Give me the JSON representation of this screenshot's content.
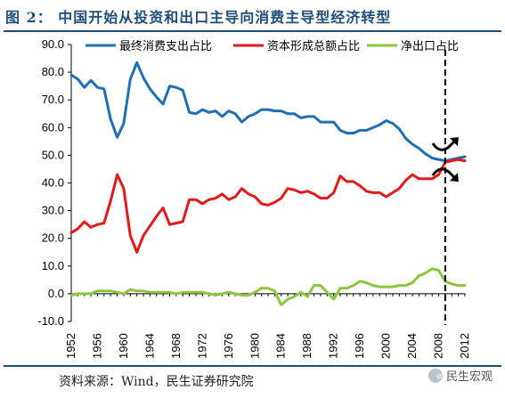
{
  "header": {
    "title": "图 2：  中国开始从投资和出口主导向消费主导型经济转型"
  },
  "footer": {
    "source": "资料来源：Wind，民生证券研究院",
    "watermark": "民生宏观"
  },
  "chart_data": {
    "type": "line",
    "title": "",
    "xlabel": "",
    "ylabel": "",
    "ylim": [
      -10,
      90
    ],
    "yticks": [
      "-10.0",
      "0.0",
      "10.0",
      "20.0",
      "30.0",
      "40.0",
      "50.0",
      "60.0",
      "70.0",
      "80.0",
      "90.0"
    ],
    "xticks": [
      "1952",
      "1956",
      "1960",
      "1964",
      "1968",
      "1972",
      "1976",
      "1980",
      "1984",
      "1988",
      "1992",
      "1996",
      "2000",
      "2004",
      "2008",
      "2012"
    ],
    "x": [
      1952,
      1953,
      1954,
      1955,
      1956,
      1957,
      1958,
      1959,
      1960,
      1961,
      1962,
      1963,
      1964,
      1965,
      1966,
      1967,
      1968,
      1969,
      1970,
      1971,
      1972,
      1973,
      1974,
      1975,
      1976,
      1977,
      1978,
      1979,
      1980,
      1981,
      1982,
      1983,
      1984,
      1985,
      1986,
      1987,
      1988,
      1989,
      1990,
      1991,
      1992,
      1993,
      1994,
      1995,
      1996,
      1997,
      1998,
      1999,
      2000,
      2001,
      2002,
      2003,
      2004,
      2005,
      2006,
      2007,
      2008,
      2009,
      2010,
      2011,
      2012
    ],
    "series": [
      {
        "name": "最终消费支出占比",
        "color": "#1f6fb5",
        "values": [
          79,
          77.5,
          74.5,
          77,
          74.5,
          74,
          63,
          56.5,
          61.5,
          77.5,
          83.5,
          78,
          74,
          71,
          68.5,
          75,
          74.5,
          73.5,
          65.5,
          65,
          66.5,
          65.5,
          66,
          64,
          66,
          65,
          62,
          64,
          65,
          66.5,
          66.5,
          66,
          66,
          65,
          65,
          63.5,
          64,
          64,
          62,
          62,
          62,
          59,
          58,
          58,
          59,
          59,
          60,
          61,
          62.5,
          61.5,
          59.5,
          56,
          54,
          52.5,
          50.5,
          49,
          48.5,
          48,
          48.5,
          49,
          49.5
        ]
      },
      {
        "name": "资本形成总额占比",
        "color": "#e31a1c",
        "values": [
          22,
          23.5,
          26,
          24,
          25,
          25.5,
          33.5,
          43,
          38,
          21,
          15,
          21,
          24.5,
          28,
          31,
          25,
          25.5,
          26,
          34,
          34,
          32.5,
          34,
          34.5,
          36,
          34,
          35,
          38,
          36,
          35,
          32.5,
          32,
          33,
          34.5,
          38,
          37.5,
          36.5,
          37,
          36,
          34.5,
          34.5,
          36.5,
          42.5,
          40.5,
          40.5,
          39,
          37,
          36.5,
          36.5,
          35,
          36.5,
          38,
          41,
          43,
          41.5,
          41.5,
          41.5,
          43,
          47.5,
          48,
          48.5,
          48
        ]
      },
      {
        "name": "净出口占比",
        "color": "#8cc63f",
        "values": [
          -0.5,
          0,
          0,
          0,
          1,
          1,
          1,
          0.5,
          0,
          1.5,
          1,
          1,
          0.5,
          0.5,
          0.5,
          0.5,
          0,
          0.5,
          0.5,
          0.5,
          0.5,
          0,
          -0.5,
          0,
          0.5,
          0,
          -0.5,
          -0.5,
          0.5,
          2,
          2,
          1,
          -4,
          -2,
          -1,
          0.5,
          -1,
          3,
          3,
          0.5,
          -2,
          2,
          2,
          3,
          4.5,
          4,
          3,
          2.5,
          2.5,
          2.5,
          3,
          3,
          4,
          6.5,
          7.5,
          9,
          8.5,
          4.5,
          3.5,
          3,
          3
        ]
      }
    ],
    "annotation": {
      "type": "vertical-dashed-line",
      "x": 2009
    },
    "legend_position": "top"
  }
}
